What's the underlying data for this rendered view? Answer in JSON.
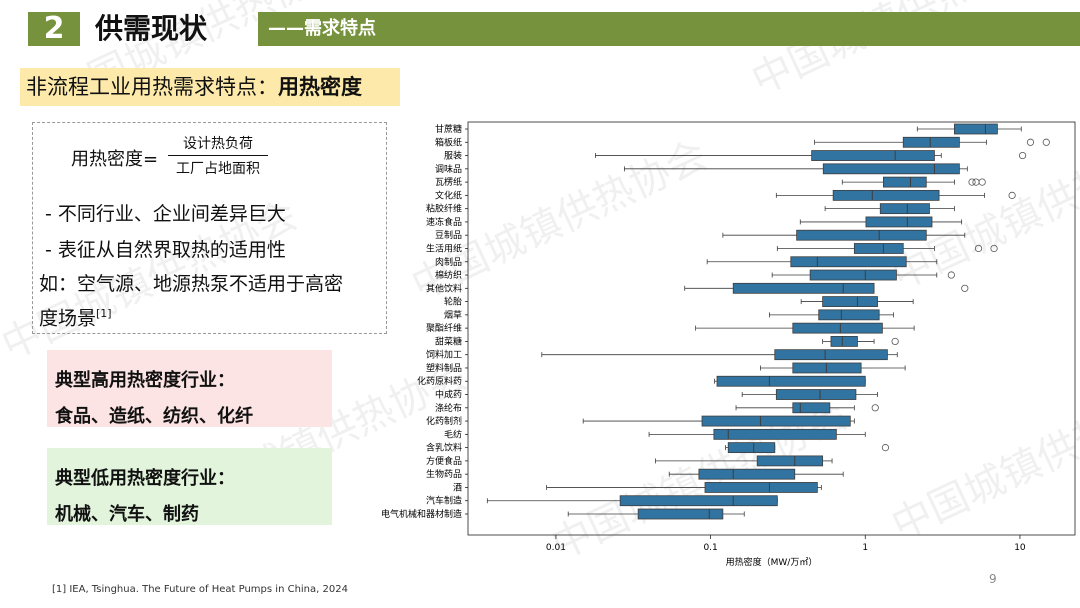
{
  "header": {
    "section_number": "2",
    "section_title": "供需现状",
    "subtitle": "——需求特点"
  },
  "heading": {
    "prefix": "非流程工业用热需求特点：",
    "emphasis": "用热密度"
  },
  "definition": {
    "term": "用热密度=",
    "numerator": "设计热负荷",
    "denominator": "工厂占地面积"
  },
  "bullets": [
    "- 不同行业、企业间差异巨大",
    "- 表征从自然界取热的适用性"
  ],
  "example": {
    "text": "如：空气源、地源热泵不适用于高密度场景",
    "ref": "[1]"
  },
  "high_density": {
    "title": "典型高用热密度行业：",
    "items": "食品、造纸、纺织、化纤"
  },
  "low_density": {
    "title": "典型低用热密度行业：",
    "items": "机械、汽车、制药"
  },
  "chart_data": {
    "type": "boxplot",
    "orientation": "horizontal",
    "x_label": "用热密度（MW/万㎡）",
    "log_scale_x": true,
    "xlim": [
      0.0027,
      22.7
    ],
    "xticks": [
      0.01,
      0.1,
      1,
      10
    ],
    "color": "#3274a1",
    "categories": [
      "甘蔗糖",
      "箱板纸",
      "服装",
      "调味品",
      "瓦楞纸",
      "文化纸",
      "粘胶纤维",
      "速冻食品",
      "豆制品",
      "生活用纸",
      "肉制品",
      "棉纺织",
      "其他饮料",
      "轮胎",
      "烟草",
      "聚酯纤维",
      "甜菜糖",
      "饲料加工",
      "塑料制品",
      "化药原料药",
      "中成药",
      "涤纶布",
      "化药制剂",
      "毛纺",
      "含乳饮料",
      "方便食品",
      "生物药品",
      "酒",
      "汽车制造",
      "电气机械和器材制造"
    ],
    "boxes": [
      {
        "low": 2.17,
        "q1": 3.77,
        "median": 5.98,
        "q3": 7.15,
        "high": 10.2,
        "outliers": []
      },
      {
        "low": 0.47,
        "q1": 1.76,
        "median": 2.63,
        "q3": 4.06,
        "high": 6.07,
        "outliers": [
          11.7,
          14.8
        ]
      },
      {
        "low": 0.018,
        "q1": 0.45,
        "median": 1.56,
        "q3": 2.8,
        "high": 3.1,
        "outliers": [
          10.4
        ]
      },
      {
        "low": 0.0277,
        "q1": 0.535,
        "median": 2.8,
        "q3": 4.06,
        "high": 4.57,
        "outliers": []
      },
      {
        "low": 0.71,
        "q1": 1.31,
        "median": 1.96,
        "q3": 2.48,
        "high": 3.77,
        "outliers": [
          4.9,
          5.2,
          5.7
        ]
      },
      {
        "low": 0.266,
        "q1": 0.62,
        "median": 1.11,
        "q3": 3.0,
        "high": 5.9,
        "outliers": [
          8.9
        ]
      },
      {
        "low": 0.55,
        "q1": 1.25,
        "median": 1.87,
        "q3": 2.6,
        "high": 3.77,
        "outliers": []
      },
      {
        "low": 0.38,
        "q1": 1.01,
        "median": 1.87,
        "q3": 2.7,
        "high": 4.2,
        "outliers": []
      },
      {
        "low": 0.12,
        "q1": 0.36,
        "median": 1.23,
        "q3": 2.48,
        "high": 4.4,
        "outliers": []
      },
      {
        "low": 0.27,
        "q1": 0.85,
        "median": 1.31,
        "q3": 1.76,
        "high": 2.8,
        "outliers": [
          5.4,
          6.8
        ]
      },
      {
        "low": 0.095,
        "q1": 0.33,
        "median": 0.49,
        "q3": 1.84,
        "high": 2.9,
        "outliers": []
      },
      {
        "low": 0.25,
        "q1": 0.44,
        "median": 1.0,
        "q3": 1.59,
        "high": 2.9,
        "outliers": [
          3.6
        ]
      },
      {
        "low": 0.068,
        "q1": 0.14,
        "median": 0.72,
        "q3": 1.14,
        "high": 1.14,
        "outliers": [
          4.4
        ]
      },
      {
        "low": 0.385,
        "q1": 0.53,
        "median": 0.89,
        "q3": 1.2,
        "high": 2.04,
        "outliers": []
      },
      {
        "low": 0.24,
        "q1": 0.5,
        "median": 0.7,
        "q3": 1.23,
        "high": 1.52,
        "outliers": []
      },
      {
        "low": 0.08,
        "q1": 0.34,
        "median": 0.69,
        "q3": 1.29,
        "high": 2.07,
        "outliers": []
      },
      {
        "low": 0.53,
        "q1": 0.6,
        "median": 0.71,
        "q3": 0.89,
        "high": 1.14,
        "outliers": [
          1.56
        ]
      },
      {
        "low": 0.0081,
        "q1": 0.26,
        "median": 0.55,
        "q3": 1.39,
        "high": 1.61,
        "outliers": []
      },
      {
        "low": 0.21,
        "q1": 0.34,
        "median": 0.56,
        "q3": 0.94,
        "high": 1.81,
        "outliers": []
      },
      {
        "low": 0.106,
        "q1": 0.11,
        "median": 0.24,
        "q3": 1.0,
        "high": 1.0,
        "outliers": []
      },
      {
        "low": 0.16,
        "q1": 0.266,
        "median": 0.51,
        "q3": 0.87,
        "high": 1.2,
        "outliers": []
      },
      {
        "low": 0.146,
        "q1": 0.34,
        "median": 0.38,
        "q3": 0.59,
        "high": 0.85,
        "outliers": [
          1.16
        ]
      },
      {
        "low": 0.015,
        "q1": 0.088,
        "median": 0.21,
        "q3": 0.8,
        "high": 0.85,
        "outliers": []
      },
      {
        "low": 0.04,
        "q1": 0.105,
        "median": 0.13,
        "q3": 0.65,
        "high": 1.0,
        "outliers": []
      },
      {
        "low": 0.125,
        "q1": 0.13,
        "median": 0.19,
        "q3": 0.26,
        "high": 0.26,
        "outliers": [
          1.35
        ]
      },
      {
        "low": 0.044,
        "q1": 0.2,
        "median": 0.35,
        "q3": 0.53,
        "high": 0.61,
        "outliers": []
      },
      {
        "low": 0.054,
        "q1": 0.084,
        "median": 0.14,
        "q3": 0.35,
        "high": 0.72,
        "outliers": []
      },
      {
        "low": 0.0087,
        "q1": 0.092,
        "median": 0.24,
        "q3": 0.49,
        "high": 0.52,
        "outliers": []
      },
      {
        "low": 0.0036,
        "q1": 0.026,
        "median": 0.14,
        "q3": 0.27,
        "high": 0.27,
        "outliers": []
      },
      {
        "low": 0.012,
        "q1": 0.034,
        "median": 0.098,
        "q3": 0.12,
        "high": 0.165,
        "outliers": []
      }
    ]
  },
  "footnote": "[1] IEA, Tsinghua. The Future of Heat Pumps in China, 2024",
  "page_number": "9",
  "watermark": "中国城镇供热协会"
}
